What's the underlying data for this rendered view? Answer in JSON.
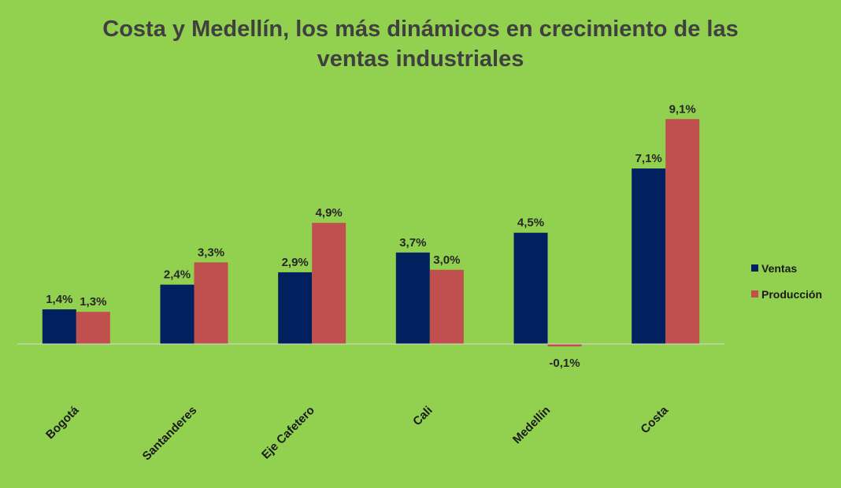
{
  "chart_data": {
    "type": "bar",
    "title_line1": "Costa y Medellín, los más dinámicos en crecimiento de las",
    "title_line2": "ventas industriales",
    "categories": [
      "Bogotá",
      "Santanderes",
      "Eje Cafetero",
      "Cali",
      "Medellín",
      "Costa"
    ],
    "series": [
      {
        "name": "Ventas",
        "color": "#002060",
        "values": [
          1.4,
          2.4,
          2.9,
          3.7,
          4.5,
          7.1
        ],
        "labels": [
          "1,4%",
          "2,4%",
          "2,9%",
          "3,7%",
          "4,5%",
          "7,1%"
        ]
      },
      {
        "name": "Producción",
        "color": "#C0504D",
        "values": [
          1.3,
          3.3,
          4.9,
          3.0,
          -0.1,
          9.1
        ],
        "labels": [
          "1,3%",
          "3,3%",
          "4,9%",
          "3,0%",
          "-0,1%",
          "9,1%"
        ]
      }
    ],
    "ylim": [
      -0.1,
      9.1
    ],
    "legend_position": "right",
    "grid": false
  }
}
